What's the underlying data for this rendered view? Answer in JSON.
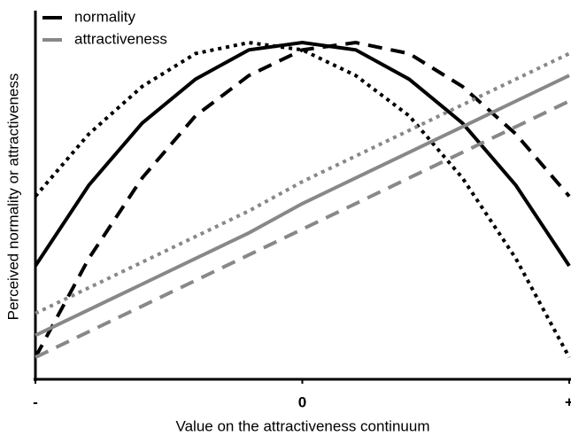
{
  "chart_data": {
    "type": "line",
    "x_label": "Value on the attractiveness continuum",
    "y_label": "Perceived normality or attractiveness",
    "x": [
      -1,
      -0.8,
      -0.6,
      -0.4,
      -0.2,
      0,
      0.2,
      0.4,
      0.6,
      0.8,
      1
    ],
    "xlim": [
      -1,
      1
    ],
    "xticks": [
      {
        "value": -1,
        "label": "-"
      },
      0,
      {
        "value": 1,
        "label": "+"
      }
    ],
    "ylim": [
      0,
      100
    ],
    "grid": false,
    "legend": [
      {
        "label": "normality",
        "color": "#000000"
      },
      {
        "label": "attractiveness",
        "color": "#888888"
      }
    ],
    "legend_position": "upper left",
    "series": [
      {
        "color": "#000000",
        "dash": "solid",
        "values": [
          31,
          53,
          70,
          82,
          90,
          92,
          90,
          82,
          70,
          53,
          31
        ]
      },
      {
        "color": "#000000",
        "dash": "dotted",
        "values": [
          50,
          67,
          80,
          89,
          92,
          90,
          83,
          72,
          55,
          33,
          6
        ]
      },
      {
        "color": "#000000",
        "dash": "dashed",
        "values": [
          6,
          33,
          55,
          72,
          83,
          90,
          92,
          89,
          80,
          67,
          50
        ]
      },
      {
        "color": "#888888",
        "dash": "solid",
        "values": [
          12,
          19,
          26,
          33,
          40,
          48,
          55,
          62,
          69,
          76,
          83
        ]
      },
      {
        "color": "#888888",
        "dash": "dotted",
        "values": [
          18,
          25,
          32,
          39,
          46,
          54,
          61,
          68,
          75,
          82,
          89
        ]
      },
      {
        "color": "#888888",
        "dash": "dashed",
        "values": [
          6,
          13,
          20,
          27,
          34,
          41,
          48,
          55,
          62,
          69,
          76
        ]
      }
    ]
  }
}
